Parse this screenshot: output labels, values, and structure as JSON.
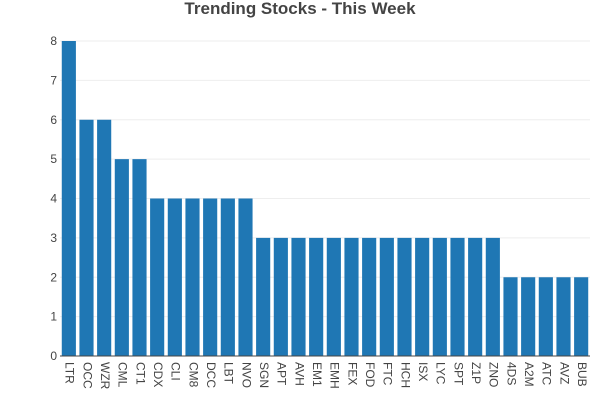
{
  "chart_data": {
    "type": "bar",
    "title": "Trending Stocks - This Week",
    "xlabel": "",
    "ylabel": "",
    "categories": [
      "LTR",
      "OCC",
      "WZR",
      "CML",
      "CT1",
      "CDX",
      "CLI",
      "CM8",
      "DCC",
      "LBT",
      "NVO",
      "SGN",
      "APT",
      "AVH",
      "EM1",
      "EMH",
      "FEX",
      "FOD",
      "FTC",
      "HCH",
      "ISX",
      "LYC",
      "SPT",
      "Z1P",
      "ZNO",
      "4DS",
      "A2M",
      "ATC",
      "AVZ",
      "BUB"
    ],
    "values": [
      8,
      6,
      6,
      5,
      5,
      4,
      4,
      4,
      4,
      4,
      4,
      3,
      3,
      3,
      3,
      3,
      3,
      3,
      3,
      3,
      3,
      3,
      3,
      3,
      3,
      2,
      2,
      2,
      2,
      2
    ],
    "ylim": [
      0,
      8
    ],
    "yticks": [
      0,
      1,
      2,
      3,
      4,
      5,
      6,
      7,
      8
    ],
    "grid": true,
    "colors": {
      "bar": "#1f77b4",
      "grid": "#eeeeee",
      "axis": "#444444",
      "text": "#444444"
    }
  }
}
